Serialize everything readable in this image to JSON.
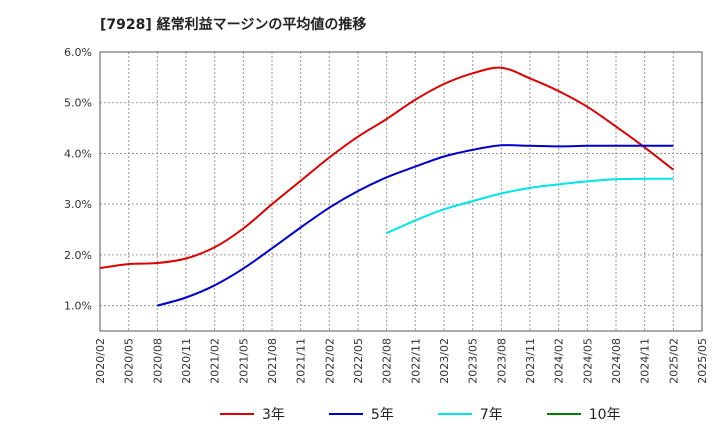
{
  "title": "[7928]  経常利益マージンの平均値の推移",
  "chart_data": {
    "type": "line",
    "y_ticks": [
      "1.0%",
      "2.0%",
      "3.0%",
      "4.0%",
      "5.0%",
      "6.0%"
    ],
    "ylim": [
      0.5,
      6.0
    ],
    "x_ticks": [
      "2020/02",
      "2020/05",
      "2020/08",
      "2020/11",
      "2021/02",
      "2021/05",
      "2021/08",
      "2021/11",
      "2022/02",
      "2022/05",
      "2022/08",
      "2022/11",
      "2023/02",
      "2023/05",
      "2023/08",
      "2023/11",
      "2024/02",
      "2024/05",
      "2024/08",
      "2024/11",
      "2025/02",
      "2025/05"
    ],
    "grid": true,
    "legend_position": "bottom",
    "series": [
      {
        "name": "3年",
        "color": "#dd0000",
        "x": [
          "2020/02",
          "2020/05",
          "2020/08",
          "2020/11",
          "2021/02",
          "2021/05",
          "2021/08",
          "2021/11",
          "2022/02",
          "2022/05",
          "2022/08",
          "2022/11",
          "2023/02",
          "2023/05",
          "2023/08",
          "2023/11",
          "2024/02",
          "2024/05",
          "2024/08",
          "2024/11",
          "2025/02"
        ],
        "values": [
          1.74,
          1.82,
          1.84,
          1.93,
          2.15,
          2.52,
          3.0,
          3.46,
          3.92,
          4.33,
          4.68,
          5.06,
          5.37,
          5.58,
          5.69,
          5.48,
          5.23,
          4.92,
          4.53,
          4.12,
          3.68
        ]
      },
      {
        "name": "5年",
        "color": "#0000cc",
        "x": [
          "2020/08",
          "2020/11",
          "2021/02",
          "2021/05",
          "2021/08",
          "2021/11",
          "2022/02",
          "2022/05",
          "2022/08",
          "2022/11",
          "2023/02",
          "2023/05",
          "2023/08",
          "2023/11",
          "2024/02",
          "2024/05",
          "2024/08",
          "2024/11",
          "2025/02"
        ],
        "values": [
          1.0,
          1.16,
          1.4,
          1.73,
          2.13,
          2.54,
          2.93,
          3.26,
          3.53,
          3.74,
          3.94,
          4.07,
          4.16,
          4.15,
          4.14,
          4.15,
          4.15,
          4.15,
          4.15
        ]
      },
      {
        "name": "7年",
        "color": "#00e5e5",
        "x": [
          "2022/08",
          "2022/11",
          "2023/02",
          "2023/05",
          "2023/08",
          "2023/11",
          "2024/02",
          "2024/05",
          "2024/08",
          "2024/11",
          "2025/02"
        ],
        "values": [
          2.43,
          2.68,
          2.9,
          3.06,
          3.21,
          3.32,
          3.39,
          3.45,
          3.49,
          3.5,
          3.5
        ]
      },
      {
        "name": "10年",
        "color": "#008000",
        "x": [],
        "values": []
      }
    ]
  }
}
